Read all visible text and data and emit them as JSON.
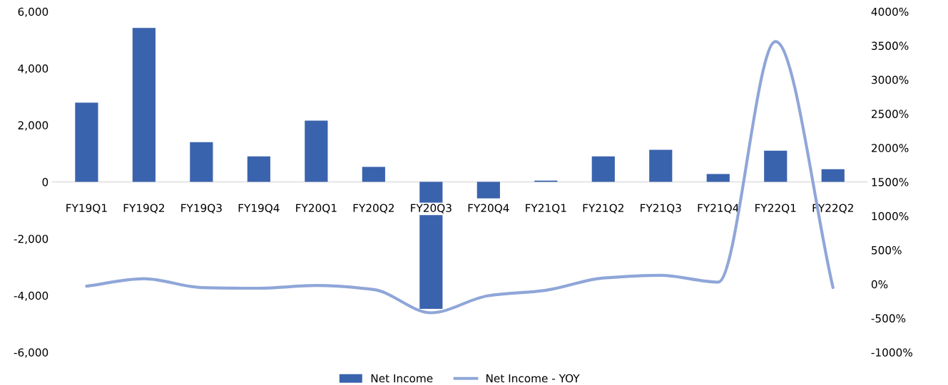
{
  "chart_data": {
    "type": "bar",
    "categories": [
      "FY19Q1",
      "FY19Q2",
      "FY19Q3",
      "FY19Q4",
      "FY20Q1",
      "FY20Q2",
      "FY20Q3",
      "FY20Q4",
      "FY21Q1",
      "FY21Q2",
      "FY21Q3",
      "FY21Q4",
      "FY22Q1",
      "FY22Q2"
    ],
    "series": [
      {
        "name": "Net Income",
        "color": "#3a63ad",
        "values": [
          2790,
          5420,
          1400,
          900,
          2160,
          530,
          -4470,
          -580,
          50,
          900,
          1130,
          280,
          1100,
          450
        ]
      },
      {
        "name": "Net Income - YOY",
        "type": "line",
        "axis": "y2",
        "color": "#8fa6d8",
        "values": [
          -30,
          80,
          -50,
          -60,
          -20,
          -80,
          -420,
          -170,
          -90,
          90,
          130,
          30,
          3560,
          -50
        ]
      }
    ],
    "ylim": [
      -6000,
      6000
    ],
    "yticks": [
      {
        "value": -6000,
        "label": "-6,000"
      },
      {
        "value": -4000,
        "label": "-4,000"
      },
      {
        "value": -2000,
        "label": "-2,000"
      },
      {
        "value": 0,
        "label": "0"
      },
      {
        "value": 2000,
        "label": "2,000"
      },
      {
        "value": 4000,
        "label": "4,000"
      },
      {
        "value": 6000,
        "label": "6,000"
      }
    ],
    "y2lim": [
      -1000,
      4000
    ],
    "y2ticks": [
      {
        "value": -1000,
        "label": "-1000%"
      },
      {
        "value": -500,
        "label": "-500%"
      },
      {
        "value": 0,
        "label": "0%"
      },
      {
        "value": 500,
        "label": "500%"
      },
      {
        "value": 1000,
        "label": "1000%"
      },
      {
        "value": 1500,
        "label": "1500%"
      },
      {
        "value": 2000,
        "label": "2000%"
      },
      {
        "value": 2500,
        "label": "2500%"
      },
      {
        "value": 3000,
        "label": "3000%"
      },
      {
        "value": 3500,
        "label": "3500%"
      },
      {
        "value": 4000,
        "label": "4000%"
      }
    ],
    "grid": false,
    "legend": "bottom"
  }
}
